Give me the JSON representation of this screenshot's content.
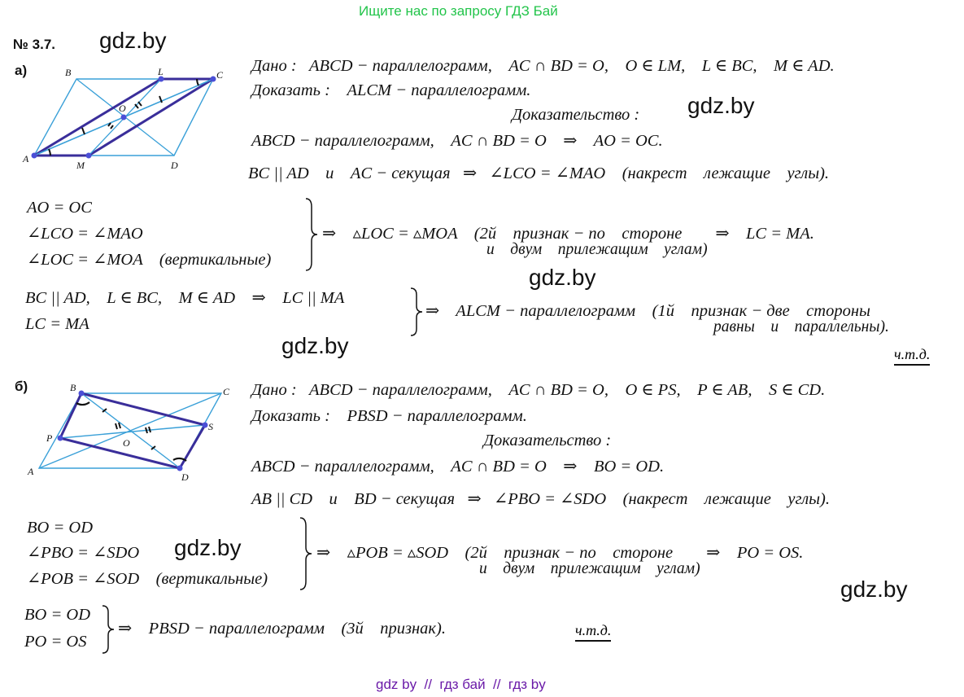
{
  "header": "Ищите нас по запросу ГДЗ Бай",
  "footer": "gdz by  //  гдз бай  //  гдз by",
  "watermark": "gdz.by",
  "problem_number": "№ 3.7.",
  "part_a": {
    "label": "а)",
    "given": "Дано :   ABCD − параллелограмм,    AC ∩ BD = O,    O ∈ LM,    L ∈ BC,    M ∈ AD.",
    "prove": "Доказать :    ALCM − параллелограмм.",
    "proof_title": "Доказательство :",
    "line1": "ABCD − параллелограмм,    AC ∩ BD = O    ⇒    AO = OC.",
    "line2": "BC || AD    и    AC − секущая   ⇒   ∠LCO = ∠MAO    (накрест    лежащие    углы).",
    "sys1": [
      "AO = OC",
      "∠LCO = ∠MAO",
      "∠LOC = ∠MOA    (вертикальные)"
    ],
    "sys1_result": "⇒    ▵LOC = ▵MOA    (2й    признак − по    стороне        ⇒    LC = MA.",
    "sys1_result2": "и    двум    прилежащим    углам)",
    "sys2": [
      "BC || AD,    L ∈ BC,    M ∈ AD    ⇒    LC || MA",
      "LC = MA"
    ],
    "sys2_result": "⇒    ALCM − параллелограмм    (1й    признак − две    стороны",
    "sys2_result2": "равны    и    параллельны).",
    "qed": "ч.т.д.",
    "fig_labels": {
      "A": "A",
      "B": "B",
      "C": "C",
      "D": "D",
      "L": "L",
      "M": "M",
      "O": "O"
    }
  },
  "part_b": {
    "label": "б)",
    "given": "Дано :   ABCD − параллелограмм,    AC ∩ BD = O,    O ∈ PS,    P ∈ AB,    S ∈ CD.",
    "prove": "Доказать :    PBSD − параллелограмм.",
    "proof_title": "Доказательство :",
    "line1": "ABCD − параллелограмм,    AC ∩ BD = O    ⇒    BO = OD.",
    "line2": "AB || CD    и    BD − секущая   ⇒   ∠PBO = ∠SDO    (накрест    лежащие    углы).",
    "sys1": [
      "BO = OD",
      "∠PBO = ∠SDO",
      "∠POB = ∠SOD    (вертикальные)"
    ],
    "sys1_result": "⇒    ▵POB = ▵SOD    (2й    признак − по    стороне        ⇒    PO = OS.",
    "sys1_result2": "и    двум    прилежащим    углам)",
    "sys2": [
      "BO = OD",
      "PO = OS"
    ],
    "sys2_result": "⇒    PBSD − параллелограмм    (3й    признак).",
    "qed": "ч.т.д.",
    "fig_labels": {
      "A": "A",
      "B": "B",
      "C": "C",
      "D": "D",
      "P": "P",
      "S": "S",
      "O": "O"
    }
  },
  "colors": {
    "header": "#22c44a",
    "footer": "#6a1aa8",
    "thin_lines": "#3aa0d8",
    "thick_lines": "#3a2e9a",
    "points": "#4b4fd6"
  }
}
